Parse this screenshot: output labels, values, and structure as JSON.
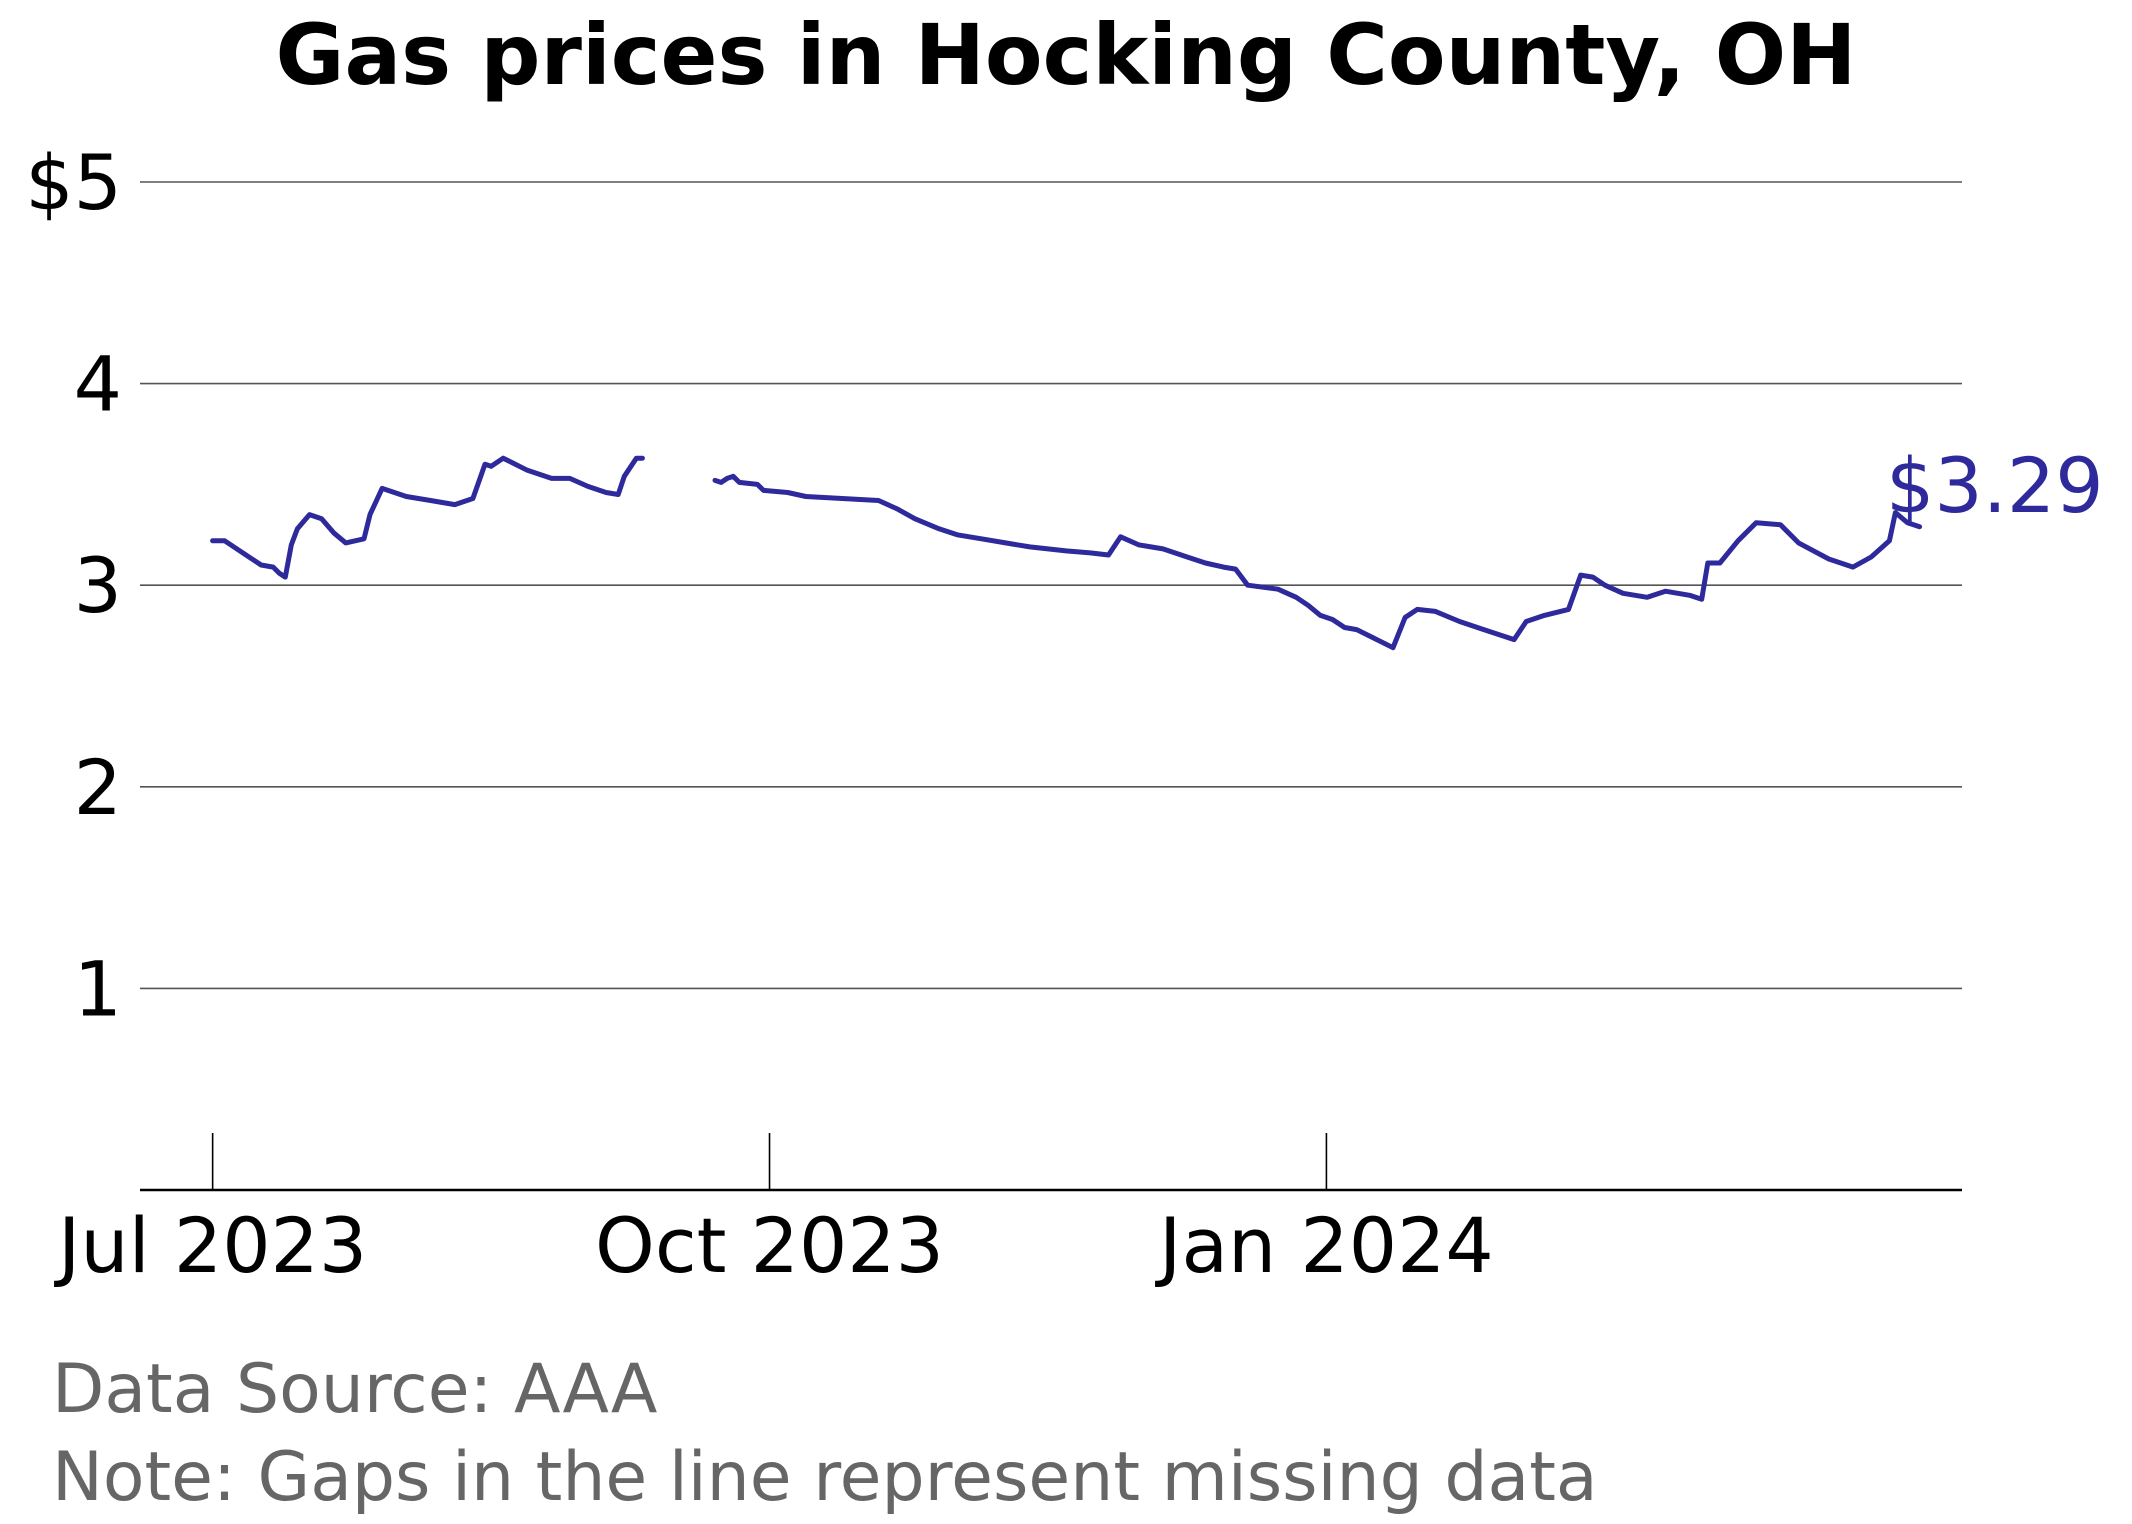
{
  "chart_data": {
    "type": "line",
    "title": "Gas prices in Hocking County, OH",
    "xlabel": "",
    "ylabel": "",
    "ylim": [
      0,
      5
    ],
    "y_ticks": [
      {
        "value": 1,
        "label": "1"
      },
      {
        "value": 2,
        "label": "2"
      },
      {
        "value": 3,
        "label": "3"
      },
      {
        "value": 4,
        "label": "4"
      },
      {
        "value": 5,
        "label": "$5"
      }
    ],
    "xlim": [
      "2023-06-19",
      "2024-04-15"
    ],
    "x_ticks": [
      {
        "date": "2023-07-01",
        "label": "Jul 2023"
      },
      {
        "date": "2023-10-01",
        "label": "Oct 2023"
      },
      {
        "date": "2024-01-01",
        "label": "Jan 2024"
      }
    ],
    "grid": true,
    "line_color": "#2e2a9c",
    "end_label": "$3.29",
    "series": [
      {
        "segments": [
          [
            [
              "2023-07-01",
              3.22
            ],
            [
              "2023-07-03",
              3.22
            ],
            [
              "2023-07-05",
              3.18
            ],
            [
              "2023-07-09",
              3.1
            ],
            [
              "2023-07-11",
              3.09
            ],
            [
              "2023-07-12",
              3.06
            ],
            [
              "2023-07-13",
              3.04
            ],
            [
              "2023-07-14",
              3.2
            ],
            [
              "2023-07-15",
              3.28
            ],
            [
              "2023-07-17",
              3.35
            ],
            [
              "2023-07-19",
              3.33
            ],
            [
              "2023-07-21",
              3.26
            ],
            [
              "2023-07-23",
              3.21
            ],
            [
              "2023-07-26",
              3.23
            ],
            [
              "2023-07-27",
              3.35
            ],
            [
              "2023-07-29",
              3.48
            ],
            [
              "2023-08-02",
              3.44
            ],
            [
              "2023-08-06",
              3.42
            ],
            [
              "2023-08-10",
              3.4
            ],
            [
              "2023-08-13",
              3.43
            ],
            [
              "2023-08-15",
              3.6
            ],
            [
              "2023-08-16",
              3.59
            ],
            [
              "2023-08-18",
              3.63
            ],
            [
              "2023-08-20",
              3.6
            ],
            [
              "2023-08-22",
              3.57
            ],
            [
              "2023-08-26",
              3.53
            ],
            [
              "2023-08-29",
              3.53
            ],
            [
              "2023-09-01",
              3.49
            ],
            [
              "2023-09-04",
              3.46
            ],
            [
              "2023-09-06",
              3.45
            ],
            [
              "2023-09-07",
              3.54
            ],
            [
              "2023-09-09",
              3.63
            ],
            [
              "2023-09-10",
              3.63
            ]
          ],
          [
            [
              "2023-09-22",
              3.52
            ],
            [
              "2023-09-23",
              3.51
            ],
            [
              "2023-09-24",
              3.53
            ],
            [
              "2023-09-25",
              3.54
            ],
            [
              "2023-09-26",
              3.51
            ],
            [
              "2023-09-29",
              3.5
            ],
            [
              "2023-09-30",
              3.47
            ],
            [
              "2023-10-04",
              3.46
            ],
            [
              "2023-10-07",
              3.44
            ],
            [
              "2023-10-13",
              3.43
            ],
            [
              "2023-10-19",
              3.42
            ],
            [
              "2023-10-22",
              3.38
            ],
            [
              "2023-10-25",
              3.33
            ],
            [
              "2023-10-29",
              3.28
            ],
            [
              "2023-11-01",
              3.25
            ],
            [
              "2023-11-05",
              3.23
            ],
            [
              "2023-11-09",
              3.21
            ],
            [
              "2023-11-13",
              3.19
            ],
            [
              "2023-11-19",
              3.17
            ],
            [
              "2023-11-23",
              3.16
            ],
            [
              "2023-11-26",
              3.15
            ],
            [
              "2023-11-28",
              3.24
            ],
            [
              "2023-12-01",
              3.2
            ],
            [
              "2023-12-05",
              3.18
            ],
            [
              "2023-12-09",
              3.14
            ],
            [
              "2023-12-12",
              3.11
            ],
            [
              "2023-12-15",
              3.09
            ],
            [
              "2023-12-17",
              3.08
            ],
            [
              "2023-12-19",
              3.0
            ],
            [
              "2023-12-24",
              2.98
            ],
            [
              "2023-12-27",
              2.94
            ],
            [
              "2023-12-29",
              2.9
            ],
            [
              "2023-12-31",
              2.85
            ],
            [
              "2024-01-02",
              2.83
            ],
            [
              "2024-01-04",
              2.79
            ],
            [
              "2024-01-06",
              2.78
            ],
            [
              "2024-01-08",
              2.75
            ],
            [
              "2024-01-12",
              2.69
            ],
            [
              "2024-01-14",
              2.84
            ],
            [
              "2024-01-16",
              2.88
            ],
            [
              "2024-01-19",
              2.87
            ],
            [
              "2024-01-23",
              2.82
            ],
            [
              "2024-01-27",
              2.78
            ],
            [
              "2024-01-30",
              2.75
            ],
            [
              "2024-02-01",
              2.73
            ],
            [
              "2024-02-03",
              2.82
            ],
            [
              "2024-02-06",
              2.85
            ],
            [
              "2024-02-10",
              2.88
            ],
            [
              "2024-02-12",
              3.05
            ],
            [
              "2024-02-14",
              3.04
            ],
            [
              "2024-02-16",
              3.0
            ],
            [
              "2024-02-19",
              2.96
            ],
            [
              "2024-02-23",
              2.94
            ],
            [
              "2024-02-26",
              2.97
            ],
            [
              "2024-03-01",
              2.95
            ],
            [
              "2024-03-03",
              2.93
            ],
            [
              "2024-03-04",
              3.11
            ],
            [
              "2024-03-06",
              3.11
            ],
            [
              "2024-03-09",
              3.22
            ],
            [
              "2024-03-12",
              3.31
            ],
            [
              "2024-03-16",
              3.3
            ],
            [
              "2024-03-19",
              3.21
            ],
            [
              "2024-03-24",
              3.13
            ],
            [
              "2024-03-28",
              3.09
            ],
            [
              "2024-03-31",
              3.14
            ],
            [
              "2024-04-03",
              3.22
            ],
            [
              "2024-04-04",
              3.36
            ],
            [
              "2024-04-06",
              3.31
            ],
            [
              "2024-04-08",
              3.29
            ]
          ]
        ]
      }
    ]
  },
  "footer": {
    "source": "Data Source: AAA",
    "note": "Note: Gaps in the line represent missing data"
  }
}
